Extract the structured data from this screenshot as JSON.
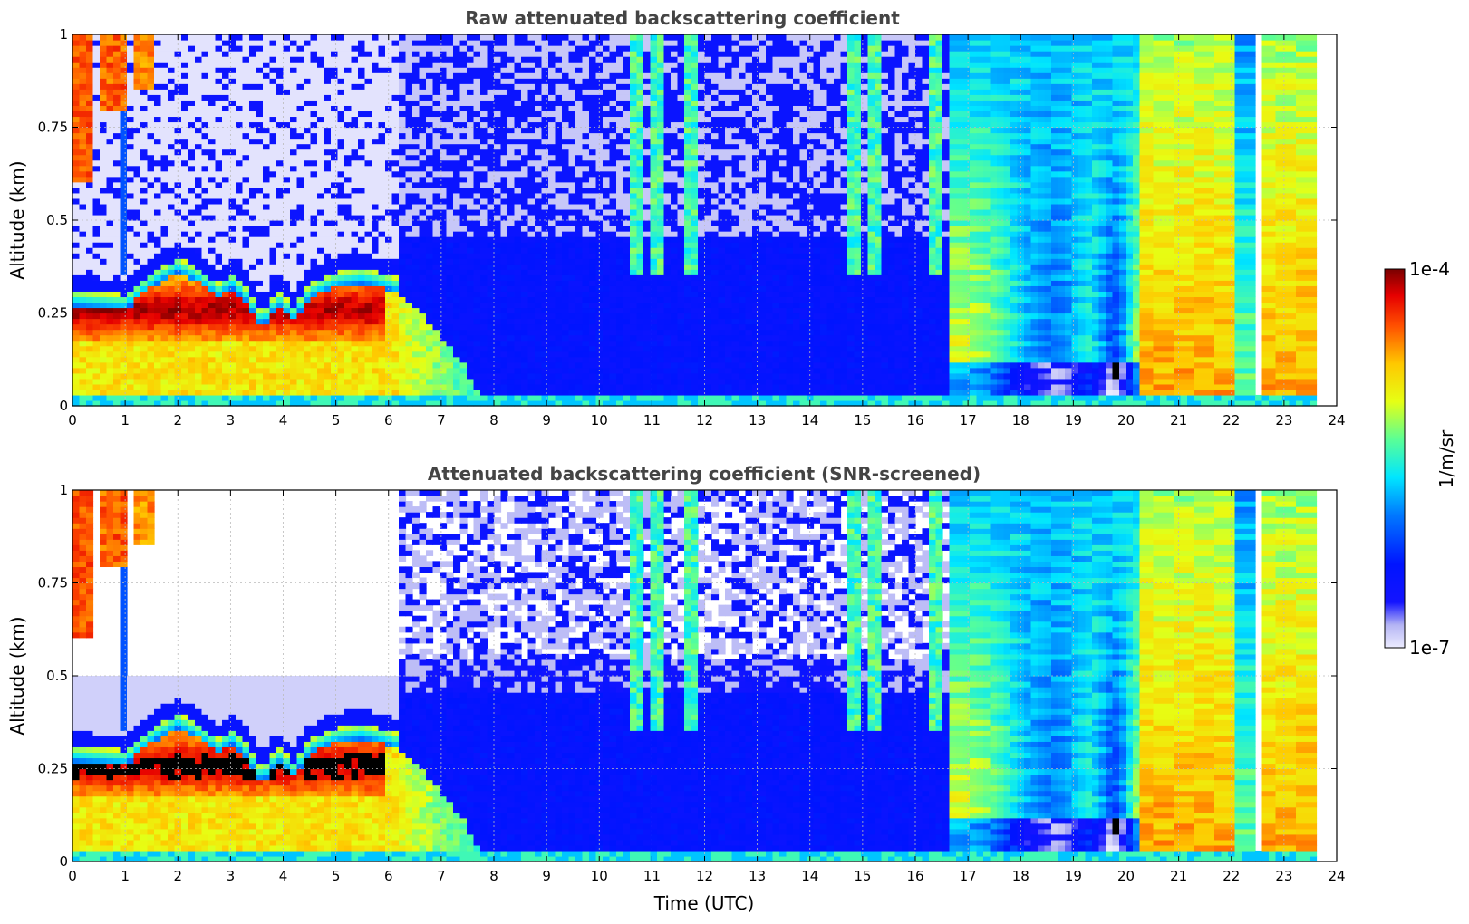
{
  "chart_data": [
    {
      "type": "heatmap",
      "title": "Raw attenuated backscattering coefficient",
      "xlabel": "",
      "ylabel": "Altitude (km)",
      "xlim": [
        0,
        24
      ],
      "ylim": [
        0,
        1
      ],
      "x_ticks": [
        "0",
        "1",
        "2",
        "3",
        "4",
        "5",
        "6",
        "7",
        "8",
        "9",
        "10",
        "11",
        "12",
        "13",
        "14",
        "15",
        "16",
        "17",
        "18",
        "19",
        "20",
        "21",
        "22",
        "23",
        "24"
      ],
      "y_ticks": [
        "0",
        "0.25",
        "0.5",
        "0.75",
        "1"
      ],
      "grid": true,
      "colorscale": "jet-log",
      "value_range": [
        "1e-7",
        "1e-4"
      ],
      "snr_screened": false
    },
    {
      "type": "heatmap",
      "title": "Attenuated backscattering coefficient (SNR-screened)",
      "xlabel": "Time (UTC)",
      "ylabel": "Altitude (km)",
      "xlim": [
        0,
        24
      ],
      "ylim": [
        0,
        1
      ],
      "x_ticks": [
        "0",
        "1",
        "2",
        "3",
        "4",
        "5",
        "6",
        "7",
        "8",
        "9",
        "10",
        "11",
        "12",
        "13",
        "14",
        "15",
        "16",
        "17",
        "18",
        "19",
        "20",
        "21",
        "22",
        "23",
        "24"
      ],
      "y_ticks": [
        "0",
        "0.25",
        "0.5",
        "0.75",
        "1"
      ],
      "grid": true,
      "colorscale": "jet-log",
      "value_range": [
        "1e-7",
        "1e-4"
      ],
      "snr_screened": true
    }
  ],
  "colorbar": {
    "label": "1/m/sr",
    "max_label": "1e-4",
    "min_label": "1e-7"
  },
  "colors": {
    "title": "#444444",
    "grid": "#bbbbbb"
  }
}
